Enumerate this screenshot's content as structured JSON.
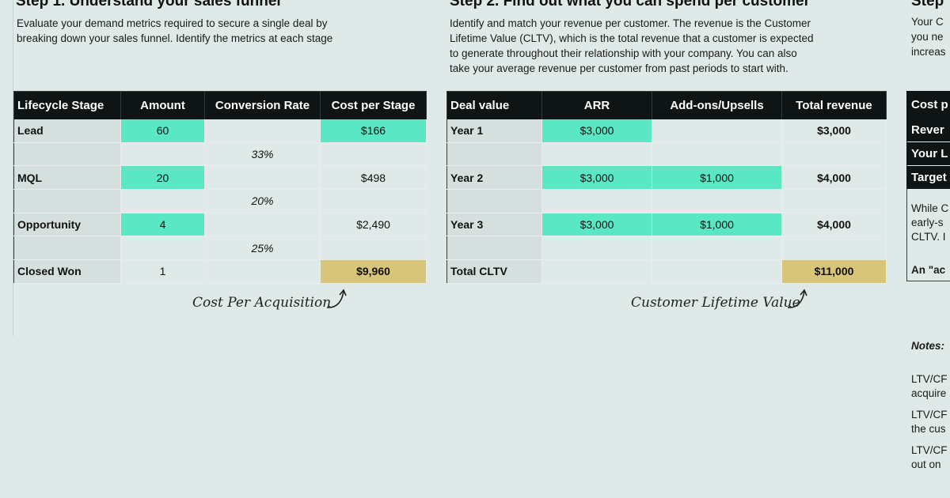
{
  "step1": {
    "title": "Step 1. Understand your sales funnel",
    "desc_lines": [
      "Evaluate your demand metrics required to secure a single deal by",
      "breaking down your sales funnel. Identify the metrics at each stage"
    ],
    "headers": [
      "Lifecycle Stage",
      "Amount",
      "Conversion Rate",
      "Cost per Stage"
    ],
    "rows": [
      {
        "stage": "Lead",
        "amount": "60",
        "rate": "",
        "cost": "$166"
      },
      {
        "stage": "",
        "amount": "",
        "rate": "33%",
        "cost": ""
      },
      {
        "stage": "MQL",
        "amount": "20",
        "rate": "",
        "cost": "$498"
      },
      {
        "stage": "",
        "amount": "",
        "rate": "20%",
        "cost": ""
      },
      {
        "stage": "Opportunity",
        "amount": "4",
        "rate": "",
        "cost": "$2,490"
      },
      {
        "stage": "",
        "amount": "",
        "rate": "25%",
        "cost": ""
      },
      {
        "stage": "Closed Won",
        "amount": "1",
        "rate": "",
        "cost": "$9,960"
      }
    ],
    "annotation": "Cost Per Acquisition"
  },
  "step2": {
    "title": "Step 2. Find out what you can spend per customer",
    "desc_lines": [
      "Identify and match your revenue per customer. The revenue is the Customer",
      "Lifetime Value (CLTV), which is the total revenue that a customer is expected",
      "to generate throughout their relationship with your company. You can also",
      "take your average revenue per customer from past periods to start with."
    ],
    "headers": [
      "Deal value",
      "ARR",
      "Add-ons/Upsells",
      "Total revenue"
    ],
    "rows": [
      {
        "label": "Year 1",
        "arr": "$3,000",
        "addon": "",
        "total": "$3,000"
      },
      {
        "label": "",
        "arr": "",
        "addon": "",
        "total": ""
      },
      {
        "label": "Year 2",
        "arr": "$3,000",
        "addon": "$1,000",
        "total": "$4,000"
      },
      {
        "label": "",
        "arr": "",
        "addon": "",
        "total": ""
      },
      {
        "label": "Year 3",
        "arr": "$3,000",
        "addon": "$1,000",
        "total": "$4,000"
      },
      {
        "label": "",
        "arr": "",
        "addon": "",
        "total": ""
      },
      {
        "label": "Total CLTV",
        "arr": "",
        "addon": "",
        "total": "$11,000"
      }
    ],
    "annotation": "Customer Lifetime Value"
  },
  "step3": {
    "title": "Step",
    "desc_lines": [
      "Your C",
      "you ne",
      "increas"
    ],
    "header": "Cost p",
    "dark_rows": [
      "Rever",
      "Your L",
      "Target"
    ],
    "para_lines": [
      "While C",
      "early-s",
      "CLTV. I"
    ],
    "bold_line": "An \"ac",
    "notes_label": "Notes:",
    "notes_lines": [
      "LTV/CF",
      "acquire",
      "LTV/CF",
      "the cus",
      "LTV/CF",
      "out on"
    ]
  },
  "colors": {
    "background": "#dfe9e8",
    "header": "#0f1515",
    "teal": "#5ae8c4",
    "gold": "#d8c57a",
    "label_cell": "#d4dfde"
  }
}
